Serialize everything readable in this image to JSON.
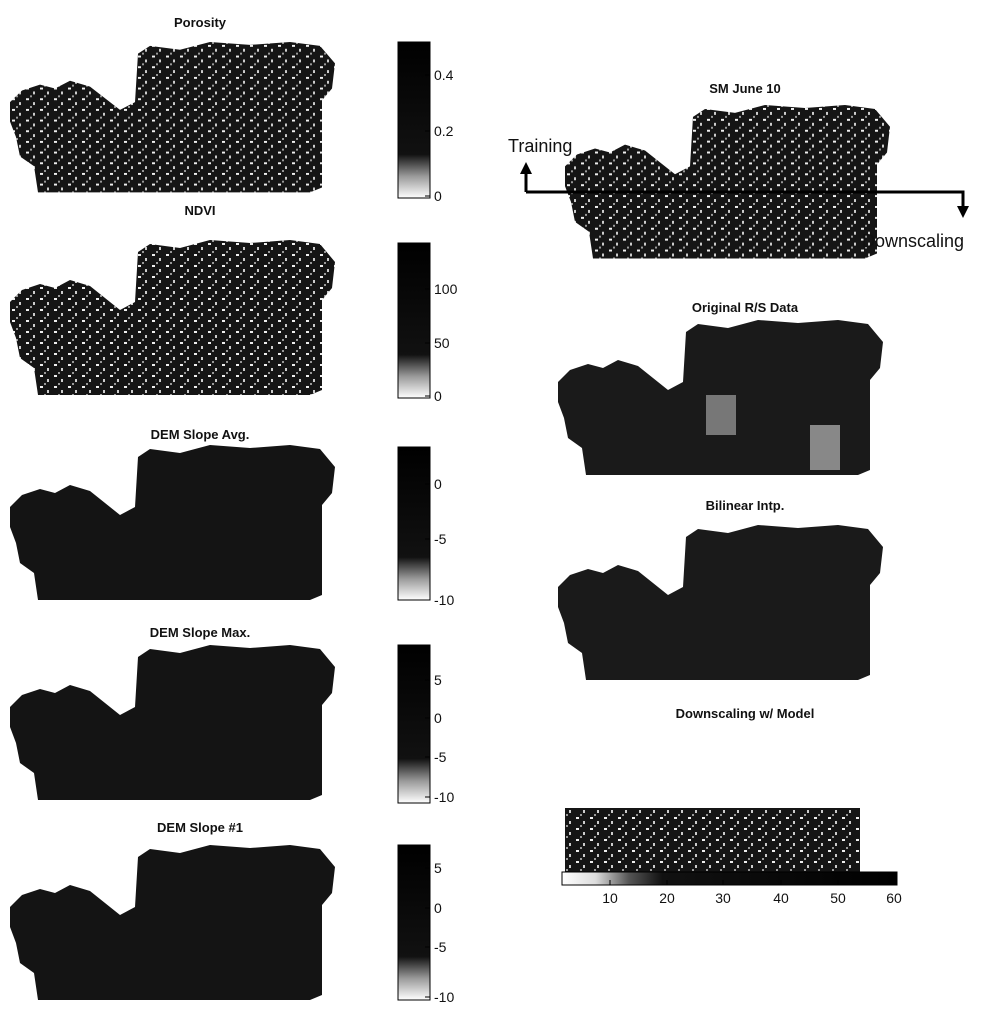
{
  "left_panels": [
    {
      "title": "Porosity",
      "colorbar_ticks": [
        0.4,
        0.2,
        0
      ]
    },
    {
      "title": "NDVI",
      "colorbar_ticks": [
        100,
        50,
        0
      ]
    },
    {
      "title": "DEM Slope Avg.",
      "colorbar_ticks": [
        0,
        -5,
        -10
      ]
    },
    {
      "title": "DEM Slope Max.",
      "colorbar_ticks": [
        5,
        0,
        -5,
        -10
      ]
    },
    {
      "title": "DEM Slope #1",
      "colorbar_ticks": [
        5,
        0,
        -5,
        -10
      ]
    }
  ],
  "right_panels": [
    {
      "title": "SM June 10"
    },
    {
      "title": "Original R/S Data"
    },
    {
      "title": "Bilinear Intp."
    },
    {
      "title": "Downscaling w/ Model"
    }
  ],
  "annotations": {
    "training": "Training",
    "downscaling": "Downscaling"
  },
  "colorbar_ticks": [
    10,
    20,
    30,
    40,
    50,
    60
  ]
}
